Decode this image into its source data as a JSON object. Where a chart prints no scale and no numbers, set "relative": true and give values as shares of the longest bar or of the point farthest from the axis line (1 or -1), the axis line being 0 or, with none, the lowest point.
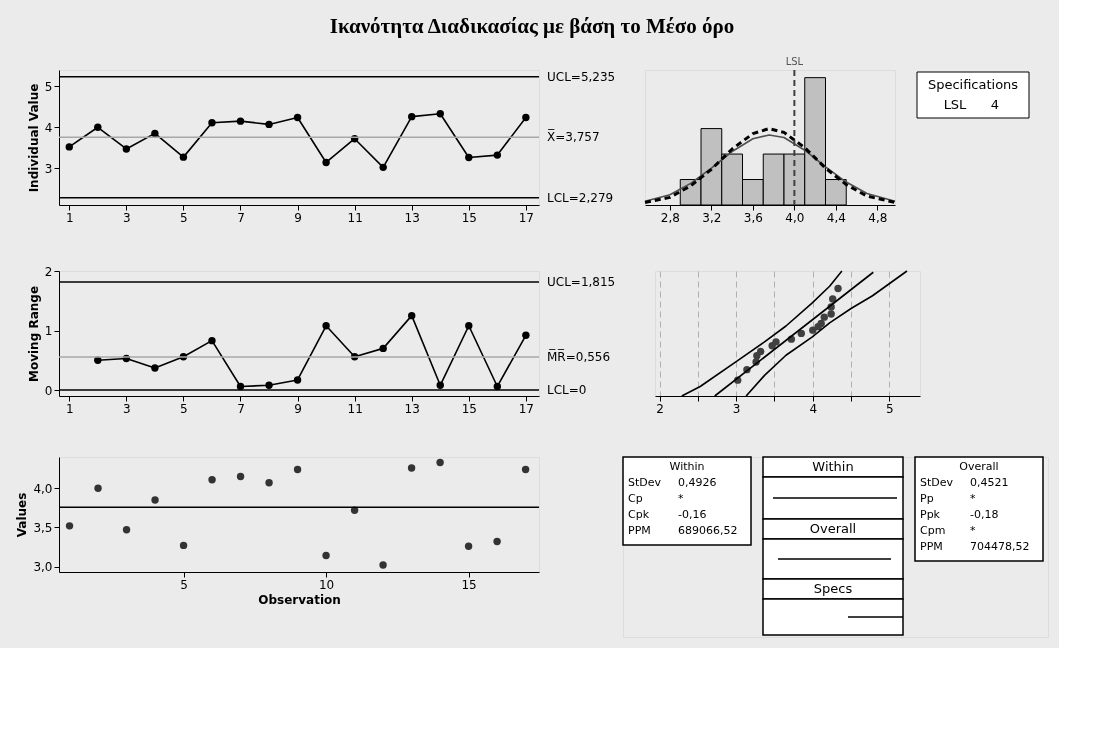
{
  "chart_data": [
    {
      "type": "line",
      "title": "Ικανότητα Διαδικασίας με βάση το Μέσο όρο",
      "ylabel": "Individual Value",
      "x": [
        1,
        2,
        3,
        4,
        5,
        6,
        7,
        8,
        9,
        10,
        11,
        12,
        13,
        14,
        15,
        16,
        17
      ],
      "values": [
        3.52,
        4.0,
        3.47,
        3.85,
        3.27,
        4.11,
        4.15,
        4.07,
        4.24,
        3.14,
        3.72,
        3.02,
        4.26,
        4.33,
        3.26,
        3.32,
        4.24
      ],
      "color": "#000000",
      "marker": "circle",
      "line_style": "solid",
      "xlim": [
        0.64,
        17.46
      ],
      "xticks": [
        1,
        3,
        5,
        7,
        9,
        11,
        13,
        15,
        17
      ],
      "ylim": [
        2.1,
        5.4
      ],
      "yticks": [
        3,
        4,
        5
      ],
      "ref_lines": [
        {
          "axis": "y",
          "value": 5.235,
          "label": "UCL=5,235",
          "color": "#000000"
        },
        {
          "axis": "y",
          "value": 3.757,
          "label": "X̅=3,757",
          "color": "#a8a8a8"
        },
        {
          "axis": "y",
          "value": 2.279,
          "label": "LCL=2,279",
          "color": "#000000"
        }
      ]
    },
    {
      "type": "histogram",
      "relative": true,
      "bins": [
        2.9,
        3.1,
        3.3,
        3.5,
        3.7,
        3.9,
        4.1,
        4.3,
        4.5
      ],
      "values": [
        0.2,
        0.6,
        0.4,
        0.2,
        0.4,
        0.4,
        1,
        0.2
      ],
      "color": "#c0c0c0",
      "xlim": [
        2.56,
        4.97
      ],
      "xticks": [
        {
          "value": 2.8,
          "label": "2,8"
        },
        {
          "value": 3.2,
          "label": "3,2"
        },
        {
          "value": 3.6,
          "label": "3,6"
        },
        {
          "value": 4.0,
          "label": "4,0"
        },
        {
          "value": 4.4,
          "label": "4,4"
        },
        {
          "value": 4.8,
          "label": "4,8"
        }
      ],
      "tick_labels": "x",
      "series": [
        {
          "type": "line",
          "line_style": "solid",
          "marker": "none",
          "color": "#505050",
          "x": [
            2.56,
            2.8,
            3.0,
            3.2,
            3.4,
            3.6,
            3.757,
            3.9,
            4.1,
            4.3,
            4.5,
            4.7,
            4.97
          ],
          "values": [
            0.03,
            0.08,
            0.17,
            0.29,
            0.42,
            0.52,
            0.55,
            0.53,
            0.43,
            0.3,
            0.18,
            0.09,
            0.03
          ]
        },
        {
          "type": "line",
          "line_style": "dashed",
          "marker": "none",
          "color": "#000000",
          "x": [
            2.56,
            2.8,
            3.0,
            3.2,
            3.4,
            3.6,
            3.757,
            3.9,
            4.1,
            4.3,
            4.5,
            4.7,
            4.97
          ],
          "values": [
            0.02,
            0.06,
            0.15,
            0.28,
            0.44,
            0.56,
            0.6,
            0.57,
            0.45,
            0.29,
            0.16,
            0.07,
            0.02
          ]
        }
      ],
      "ref_lines": [
        {
          "axis": "x",
          "value": 4,
          "label": "LSL",
          "color": "#404040",
          "line_style": "dashed"
        }
      ],
      "annotations": [
        "Specifications",
        "LSL",
        "4"
      ]
    },
    {
      "type": "line",
      "ylabel": "Moving Range",
      "x": [
        2,
        3,
        4,
        5,
        6,
        7,
        8,
        9,
        10,
        11,
        12,
        13,
        14,
        15,
        16,
        17
      ],
      "values": [
        0.5,
        0.53,
        0.37,
        0.56,
        0.83,
        0.06,
        0.08,
        0.17,
        1.08,
        0.56,
        0.7,
        1.25,
        0.08,
        1.08,
        0.06,
        0.92
      ],
      "color": "#000000",
      "marker": "circle",
      "line_style": "solid",
      "xlim": [
        0.64,
        17.46
      ],
      "xticks": [
        1,
        3,
        5,
        7,
        9,
        11,
        13,
        15,
        17
      ],
      "ylim": [
        -0.1,
        2.0
      ],
      "yticks": [
        0,
        1,
        2
      ],
      "ref_lines": [
        {
          "axis": "y",
          "value": 1.815,
          "label": "UCL=1,815",
          "color": "#000000"
        },
        {
          "axis": "y",
          "value": 0.556,
          "label": "M̅R̅=0,556",
          "color": "#a8a8a8"
        },
        {
          "axis": "y",
          "value": 0,
          "label": "LCL=0",
          "color": "#000000"
        }
      ]
    },
    {
      "type": "scatter",
      "relative": true,
      "xlim": [
        1.94,
        5.4
      ],
      "xticks": [
        2,
        {
          "value": 2.5,
          "label": null
        },
        3,
        {
          "value": 3.5,
          "label": null
        },
        4,
        {
          "value": 4.5,
          "label": null
        },
        5
      ],
      "tick_labels": "x",
      "grid": "x",
      "marker": "circle",
      "series": [
        {
          "type": "scatter",
          "color": "#404040",
          "x": [
            3.02,
            3.14,
            3.26,
            3.27,
            3.32,
            3.47,
            3.52,
            3.72,
            3.85,
            4.0,
            4.07,
            4.11,
            4.15,
            4.24,
            4.24,
            4.26,
            4.33
          ],
          "values": [
            0.127,
            0.211,
            0.272,
            0.323,
            0.356,
            0.402,
            0.433,
            0.455,
            0.501,
            0.527,
            0.555,
            0.58,
            0.631,
            0.656,
            0.712,
            0.776,
            0.86
          ]
        },
        {
          "type": "line",
          "line_style": "solid",
          "marker": "none",
          "color": "#000000",
          "x": [
            2.72,
            4.79
          ],
          "values": [
            0,
            0.99
          ]
        },
        {
          "type": "line",
          "line_style": "solid",
          "marker": "none",
          "color": "#000000",
          "x": [
            2.29,
            2.53,
            3.0,
            3.37,
            3.65,
            3.99,
            4.22,
            4.38
          ],
          "values": [
            0,
            0.076,
            0.275,
            0.433,
            0.56,
            0.743,
            0.878,
            1
          ]
        },
        {
          "type": "line",
          "line_style": "solid",
          "marker": "none",
          "color": "#000000",
          "x": [
            3.13,
            3.37,
            3.65,
            3.99,
            4.22,
            4.5,
            4.78,
            5.23
          ],
          "values": [
            0,
            0.165,
            0.326,
            0.471,
            0.585,
            0.7,
            0.802,
            1
          ]
        }
      ]
    },
    {
      "type": "scatter",
      "xlabel": "Observation",
      "ylabel": "Values",
      "x": [
        1,
        2,
        3,
        4,
        5,
        6,
        7,
        8,
        9,
        10,
        11,
        12,
        13,
        14,
        15,
        16,
        17
      ],
      "values": [
        3.52,
        4.0,
        3.47,
        3.85,
        3.27,
        4.11,
        4.15,
        4.07,
        4.24,
        3.14,
        3.72,
        3.02,
        4.26,
        4.33,
        3.26,
        3.32,
        4.24
      ],
      "color": "#333333",
      "marker": "circle",
      "xlim": [
        0.63,
        17.47
      ],
      "xticks": [
        5,
        10,
        15
      ],
      "ylim": [
        2.93,
        4.4
      ],
      "yticks": [
        {
          "value": 3.0,
          "label": "3,0"
        },
        {
          "value": 3.5,
          "label": "3,5"
        },
        {
          "value": 4.0,
          "label": "4,0"
        }
      ],
      "ref_lines": [
        {
          "axis": "y",
          "value": 3.757,
          "color": "#000000"
        }
      ]
    },
    {
      "type": "other",
      "annotations": [
        "Within",
        "StDev",
        "0,4926",
        "Cp",
        "*",
        "Cpk",
        "-0,16",
        "PPM",
        "689066,52",
        "Within",
        "Overall",
        "Specs",
        "Overall",
        "StDev",
        "0,4521",
        "Pp",
        "*",
        "Ppk",
        "-0,18",
        "Cpm",
        "*",
        "PPM",
        "704478,52"
      ]
    }
  ]
}
